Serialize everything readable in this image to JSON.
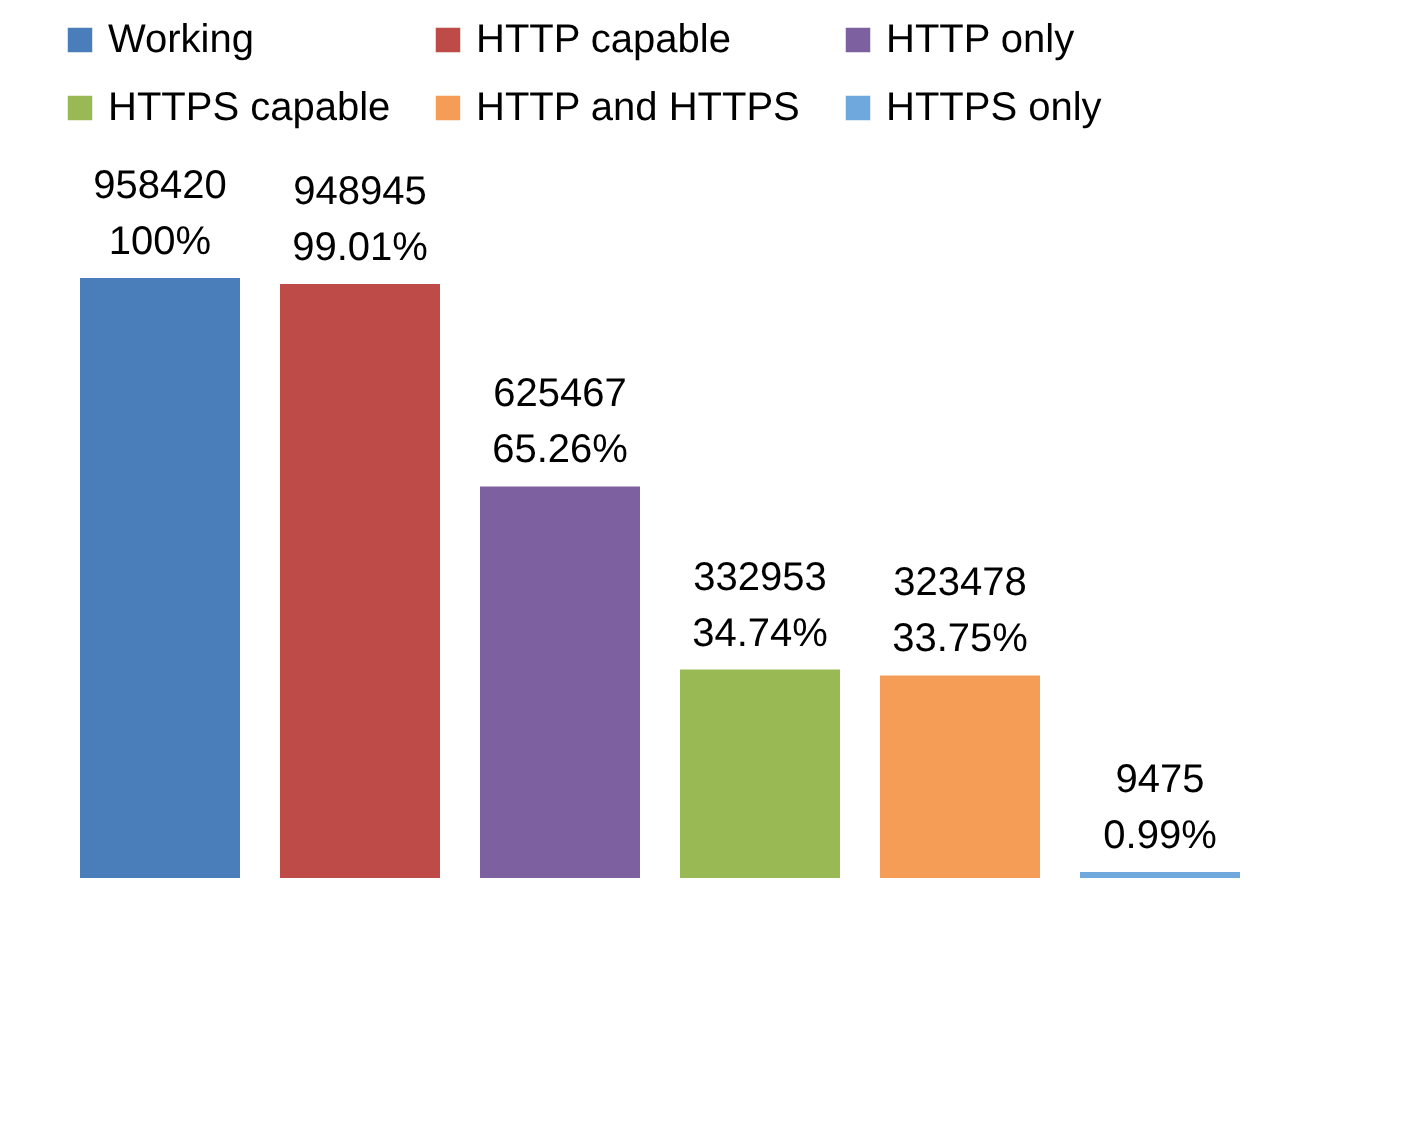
{
  "chart_data": {
    "type": "bar",
    "categories": [
      null,
      null,
      null,
      null,
      null,
      null
    ],
    "series": [
      {
        "name": "Working",
        "color": "#4a7ebb",
        "values": [
          958420,
          null,
          null,
          null,
          null,
          null
        ]
      },
      {
        "name": "HTTP capable",
        "color": "#be4b48",
        "values": [
          null,
          948945,
          null,
          null,
          null,
          null
        ]
      },
      {
        "name": "HTTP only",
        "color": "#7d60a0",
        "values": [
          null,
          null,
          625467,
          null,
          null,
          null
        ]
      },
      {
        "name": "HTTPS capable",
        "color": "#98b954",
        "values": [
          null,
          null,
          null,
          332953,
          null,
          null
        ]
      },
      {
        "name": "HTTP and HTTPS",
        "color": "#f59d56",
        "values": [
          null,
          null,
          null,
          null,
          323478,
          null
        ]
      },
      {
        "name": "HTTPS only",
        "color": "#6fa8dc",
        "values": [
          null,
          null,
          null,
          null,
          null,
          9475
        ]
      }
    ],
    "stacked": true,
    "data_labels": true,
    "annotations": [
      "100%",
      "99.01%",
      "65.26%",
      "34.74%",
      "33.75%",
      "0.99%"
    ],
    "legend": "top"
  }
}
